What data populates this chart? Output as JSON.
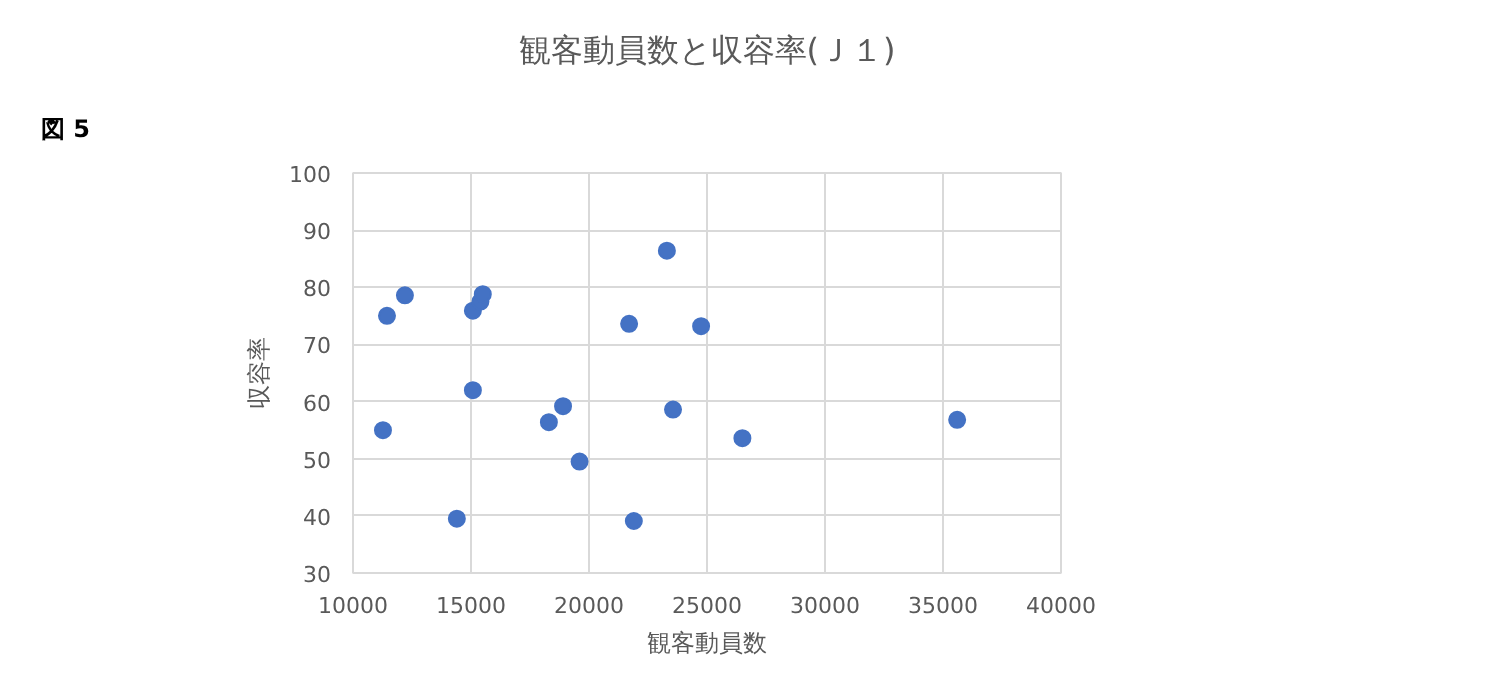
{
  "chart_data": {
    "type": "scatter",
    "title": "観客動員数と収容率(Ｊ１)",
    "xlabel": "観客動員数",
    "ylabel": "収容率",
    "annotations": [
      "図 5"
    ],
    "x": [
      11270,
      11440,
      12200,
      14400,
      15080,
      15080,
      15400,
      15500,
      18300,
      18900,
      19600,
      21700,
      21900,
      23300,
      23560,
      24750,
      26500,
      35600
    ],
    "values": [
      55,
      75,
      78.6,
      39.5,
      75.9,
      62,
      77.5,
      78.8,
      56.4,
      59.2,
      49.5,
      73.6,
      39.1,
      86.4,
      58.6,
      73.2,
      53.6,
      56.8
    ],
    "color": "#4472c4",
    "marker": "circle",
    "xlim": [
      10000,
      40000
    ],
    "xticks": [
      10000,
      15000,
      20000,
      25000,
      30000,
      35000,
      40000
    ],
    "ylim": [
      30,
      100
    ],
    "yticks": [
      30,
      40,
      50,
      60,
      70,
      80,
      90,
      100
    ],
    "grid": true
  }
}
